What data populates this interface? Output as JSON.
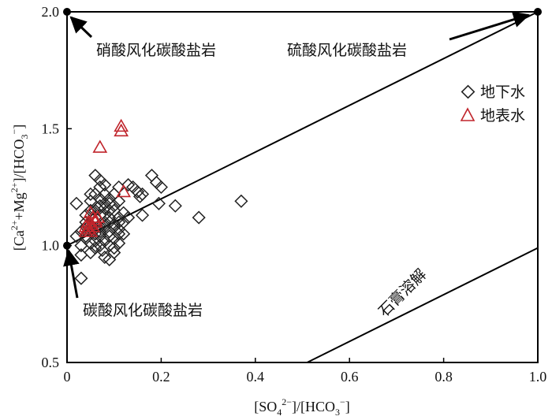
{
  "chart_data": {
    "type": "scatter",
    "xlim": [
      0,
      1.0
    ],
    "ylim": [
      0.5,
      2.0
    ],
    "x_ticks": [
      "0",
      "0.2",
      "0.4",
      "0.6",
      "0.8",
      "1.0"
    ],
    "y_ticks": [
      "0.5",
      "1.0",
      "1.5",
      "2.0"
    ],
    "xlabel": {
      "open": "[SO",
      "sub": "4",
      "sup": "2−",
      "close": "]/[HCO",
      "sub2": "3",
      "sup2": "−",
      "end": "]"
    },
    "ylabel": {
      "open": "[Ca",
      "sup": "2+",
      "mid": "+Mg",
      "sup2": "2+",
      "close": "]/[HCO",
      "sub": "3",
      "sup3": "−",
      "end": "]"
    },
    "grid": false,
    "legend_position": "upper-right",
    "colors": {
      "groundwater": "#222222",
      "surface_water": "#c0242b",
      "axis": "#000000"
    },
    "reference_lines": [
      {
        "from": [
          0,
          1.0
        ],
        "to": [
          1.0,
          2.0
        ]
      },
      {
        "from": [
          0.51,
          0.5
        ],
        "to": [
          1.0,
          0.99
        ]
      }
    ],
    "endmembers": [
      {
        "label": "硝酸风化碳酸盐岩",
        "x": 0,
        "y": 2.0
      },
      {
        "label": "硫酸风化碳酸盐岩",
        "x": 1.0,
        "y": 2.0
      },
      {
        "label": "碳酸风化碳酸盐岩",
        "x": 0,
        "y": 1.0
      }
    ],
    "line_label": "石膏溶解",
    "series": [
      {
        "name": "地下水",
        "marker": "diamond",
        "points": [
          [
            0.03,
            0.86
          ],
          [
            0.04,
            1.1
          ],
          [
            0.05,
            1.22
          ],
          [
            0.06,
            1.3
          ],
          [
            0.07,
            1.28
          ],
          [
            0.08,
            1.26
          ],
          [
            0.09,
            1.2
          ],
          [
            0.1,
            1.22
          ],
          [
            0.11,
            1.25
          ],
          [
            0.13,
            1.26
          ],
          [
            0.14,
            1.25
          ],
          [
            0.15,
            1.23
          ],
          [
            0.16,
            1.22
          ],
          [
            0.155,
            1.21
          ],
          [
            0.18,
            1.3
          ],
          [
            0.19,
            1.27
          ],
          [
            0.2,
            1.25
          ],
          [
            0.195,
            1.18
          ],
          [
            0.23,
            1.17
          ],
          [
            0.28,
            1.12
          ],
          [
            0.37,
            1.19
          ],
          [
            0.16,
            1.13
          ],
          [
            0.03,
            1.0
          ],
          [
            0.04,
            1.03
          ],
          [
            0.05,
            0.97
          ],
          [
            0.06,
            0.99
          ],
          [
            0.07,
            1.0
          ],
          [
            0.08,
            0.95
          ],
          [
            0.09,
            0.94
          ],
          [
            0.1,
            0.97
          ],
          [
            0.11,
            1.01
          ],
          [
            0.12,
            1.05
          ],
          [
            0.02,
            1.04
          ],
          [
            0.03,
            1.06
          ],
          [
            0.05,
            1.06
          ],
          [
            0.06,
            1.05
          ],
          [
            0.07,
            1.08
          ],
          [
            0.08,
            1.1
          ],
          [
            0.09,
            1.12
          ],
          [
            0.1,
            1.15
          ],
          [
            0.11,
            1.12
          ],
          [
            0.12,
            1.14
          ],
          [
            0.03,
            0.96
          ],
          [
            0.05,
            1.01
          ],
          [
            0.06,
            1.1
          ],
          [
            0.07,
            1.13
          ],
          [
            0.08,
            1.16
          ],
          [
            0.09,
            1.18
          ],
          [
            0.1,
            1.09
          ],
          [
            0.11,
            1.07
          ],
          [
            0.04,
            1.08
          ],
          [
            0.06,
            1.15
          ],
          [
            0.07,
            1.2
          ],
          [
            0.08,
            1.22
          ],
          [
            0.09,
            1.06
          ],
          [
            0.1,
            1.03
          ],
          [
            0.02,
            1.18
          ],
          [
            0.05,
            1.15
          ],
          [
            0.06,
            1.12
          ],
          [
            0.07,
            1.17
          ],
          [
            0.08,
            1.13
          ],
          [
            0.09,
            1.1
          ],
          [
            0.1,
            1.17
          ],
          [
            0.11,
            1.19
          ],
          [
            0.04,
            1.13
          ],
          [
            0.05,
            1.09
          ],
          [
            0.06,
            1.07
          ],
          [
            0.07,
            1.04
          ],
          [
            0.08,
            1.02
          ],
          [
            0.09,
            1.0
          ],
          [
            0.1,
            0.99
          ],
          [
            0.11,
            1.1
          ],
          [
            0.04,
            1.04
          ],
          [
            0.05,
            1.19
          ],
          [
            0.06,
            1.22
          ],
          [
            0.07,
            1.25
          ],
          [
            0.08,
            1.18
          ],
          [
            0.09,
            1.15
          ],
          [
            0.12,
            1.1
          ],
          [
            0.13,
            1.12
          ],
          [
            0.06,
            1.02
          ],
          [
            0.07,
            1.06
          ],
          [
            0.08,
            1.08
          ],
          [
            0.09,
            1.04
          ],
          [
            0.1,
            1.08
          ],
          [
            0.11,
            1.05
          ],
          [
            0.065,
            1.16
          ],
          [
            0.075,
            0.98
          ]
        ]
      },
      {
        "name": "地表水",
        "marker": "triangle",
        "points": [
          [
            0.115,
            1.51
          ],
          [
            0.115,
            1.49
          ],
          [
            0.07,
            1.42
          ],
          [
            0.12,
            1.23
          ],
          [
            0.05,
            1.14
          ],
          [
            0.055,
            1.12
          ],
          [
            0.06,
            1.11
          ],
          [
            0.045,
            1.1
          ],
          [
            0.05,
            1.09
          ],
          [
            0.055,
            1.08
          ],
          [
            0.04,
            1.08
          ],
          [
            0.045,
            1.07
          ],
          [
            0.05,
            1.06
          ],
          [
            0.06,
            1.1
          ],
          [
            0.065,
            1.12
          ],
          [
            0.04,
            1.06
          ]
        ]
      }
    ]
  }
}
